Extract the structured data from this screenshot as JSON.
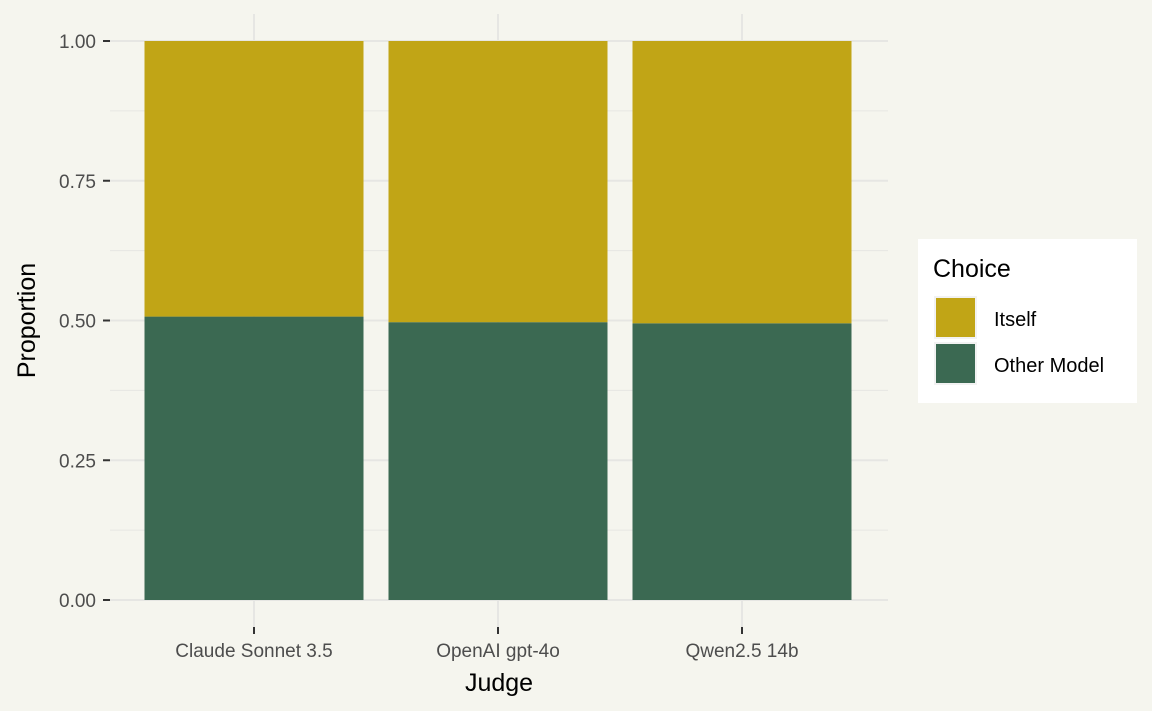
{
  "chart_data": {
    "type": "bar",
    "stacked": true,
    "categories": [
      "Claude Sonnet 3.5",
      "OpenAI gpt-4o",
      "Qwen2.5 14b"
    ],
    "series": [
      {
        "name": "Other Model",
        "values": [
          0.507,
          0.497,
          0.495
        ],
        "color": "#3b6952"
      },
      {
        "name": "Itself",
        "values": [
          0.493,
          0.503,
          0.505
        ],
        "color": "#c1a516"
      }
    ],
    "title": "",
    "xlabel": "Judge",
    "ylabel": "Proportion",
    "ylim": [
      0,
      1
    ],
    "yticks": [
      0,
      0.25,
      0.5,
      0.75,
      1
    ],
    "ytick_labels": [
      "0.00",
      "0.25",
      "0.50",
      "0.75",
      "1.00"
    ],
    "grid": true,
    "legend": {
      "title": "Choice",
      "position": "right",
      "entries": [
        "Itself",
        "Other Model"
      ]
    },
    "colors": {
      "background": "#f5f5ee",
      "grid": "#e6e6e3",
      "text": "#4d4d4d"
    }
  }
}
